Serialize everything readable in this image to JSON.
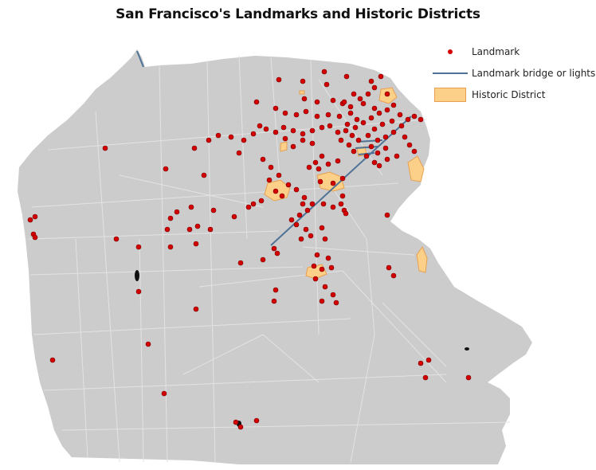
{
  "title": "San Francisco's Landmarks and Historic Districts",
  "legend": {
    "items": [
      {
        "key": "landmark",
        "label": "Landmark",
        "symbol": "red-dot"
      },
      {
        "key": "bridge",
        "label": "Landmark bridge or lights",
        "symbol": "blue-line"
      },
      {
        "key": "district",
        "label": "Historic District",
        "symbol": "orange-polygon"
      }
    ]
  },
  "colors": {
    "land": "#cccccc",
    "streets": "#e3e3e3",
    "landmark": "#d40000",
    "landmark_outline": "#7a0000",
    "bridge_line": "#4f7397",
    "district_fill": "#fdd08a",
    "district_outline": "#e8a050"
  }
}
